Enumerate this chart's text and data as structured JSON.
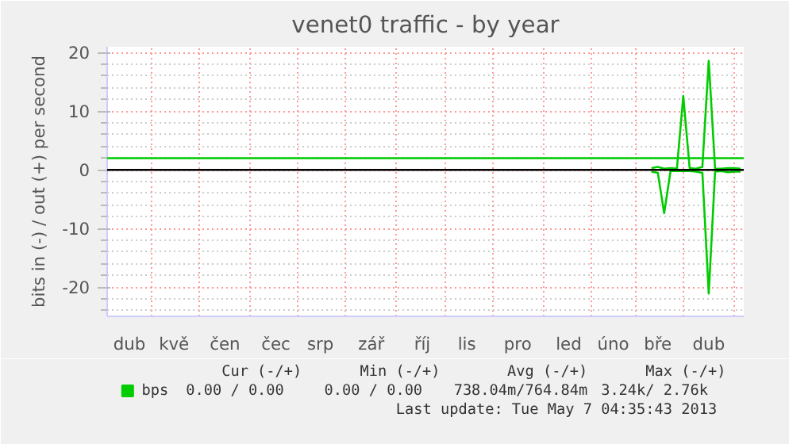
{
  "chart_data": {
    "type": "line",
    "title": "venet0 traffic - by year",
    "ylabel": "bits in (-) / out (+) per second",
    "categories": [
      null,
      null,
      null,
      "dub",
      null,
      null,
      null,
      null,
      null,
      null,
      "kvě",
      null,
      null,
      null,
      null,
      null,
      null,
      null,
      "čen",
      null,
      null,
      null,
      null,
      null,
      null,
      null,
      "čec",
      null,
      null,
      null,
      null,
      null,
      null,
      "srp",
      null,
      null,
      null,
      null,
      null,
      null,
      null,
      "zář",
      null,
      null,
      null,
      null,
      null,
      null,
      null,
      "říj",
      null,
      null,
      null,
      null,
      null,
      null,
      "lis",
      null,
      null,
      null,
      null,
      null,
      null,
      null,
      "pro",
      null,
      null,
      null,
      null,
      null,
      null,
      null,
      "led",
      null,
      null,
      null,
      null,
      null,
      null,
      "úno",
      null,
      null,
      null,
      null,
      null,
      null,
      "bře",
      null,
      null,
      null,
      null,
      null,
      null,
      null,
      "dub",
      null,
      null,
      null,
      null,
      null
    ],
    "ylim": [
      -25,
      21
    ],
    "yticks": [
      -20,
      -10,
      0,
      10,
      20
    ],
    "grid": true,
    "legend": "bottom",
    "series": [
      {
        "name": "bps",
        "color": "#00cc00",
        "values": [
          null,
          null,
          null,
          null,
          null,
          null,
          null,
          null,
          null,
          null,
          null,
          null,
          null,
          null,
          null,
          null,
          null,
          null,
          null,
          null,
          null,
          null,
          null,
          null,
          null,
          null,
          null,
          null,
          null,
          null,
          null,
          null,
          null,
          null,
          null,
          null,
          null,
          null,
          null,
          null,
          null,
          null,
          null,
          null,
          null,
          null,
          null,
          null,
          null,
          null,
          null,
          null,
          null,
          null,
          null,
          null,
          null,
          null,
          null,
          null,
          null,
          null,
          null,
          null,
          null,
          null,
          null,
          null,
          null,
          null,
          null,
          null,
          null,
          null,
          null,
          null,
          null,
          null,
          null,
          null,
          null,
          null,
          null,
          null,
          null,
          0.3,
          0.5,
          0.2,
          0.3,
          0.2,
          12.6,
          0.3,
          0.2,
          0.5,
          18.6,
          0.2,
          0.2,
          0.3,
          0.3,
          0.2
        ]
      },
      {
        "color": "#00cc00",
        "values": [
          null,
          null,
          null,
          null,
          null,
          null,
          null,
          null,
          null,
          null,
          null,
          null,
          null,
          null,
          null,
          null,
          null,
          null,
          null,
          null,
          null,
          null,
          null,
          null,
          null,
          null,
          null,
          null,
          null,
          null,
          null,
          null,
          null,
          null,
          null,
          null,
          null,
          null,
          null,
          null,
          null,
          null,
          null,
          null,
          null,
          null,
          null,
          null,
          null,
          null,
          null,
          null,
          null,
          null,
          null,
          null,
          null,
          null,
          null,
          null,
          null,
          null,
          null,
          null,
          null,
          null,
          null,
          null,
          null,
          null,
          null,
          null,
          null,
          null,
          null,
          null,
          null,
          null,
          null,
          null,
          null,
          null,
          null,
          null,
          null,
          -0.3,
          -0.5,
          -7.4,
          -0.2,
          -0.2,
          -0.2,
          -0.2,
          -0.3,
          -0.5,
          -21.1,
          -0.3,
          -0.2,
          -0.4,
          -0.3,
          -0.3
        ]
      }
    ],
    "ref_lines": [
      {
        "axis": "y",
        "value": 0,
        "color": "#000000"
      },
      {
        "axis": "y",
        "value": 2,
        "color": "#00cc00"
      }
    ],
    "annotations": [
      "Cur (-/+)",
      "Min (-/+)",
      "Avg (-/+)",
      "Max (-/+)",
      "0.00 /   0.00",
      "0.00 /   0.00",
      "738.04m/764.84m",
      "3.24k/   2.76k",
      "Last update: Tue May  7 04:35:43 2013"
    ]
  }
}
